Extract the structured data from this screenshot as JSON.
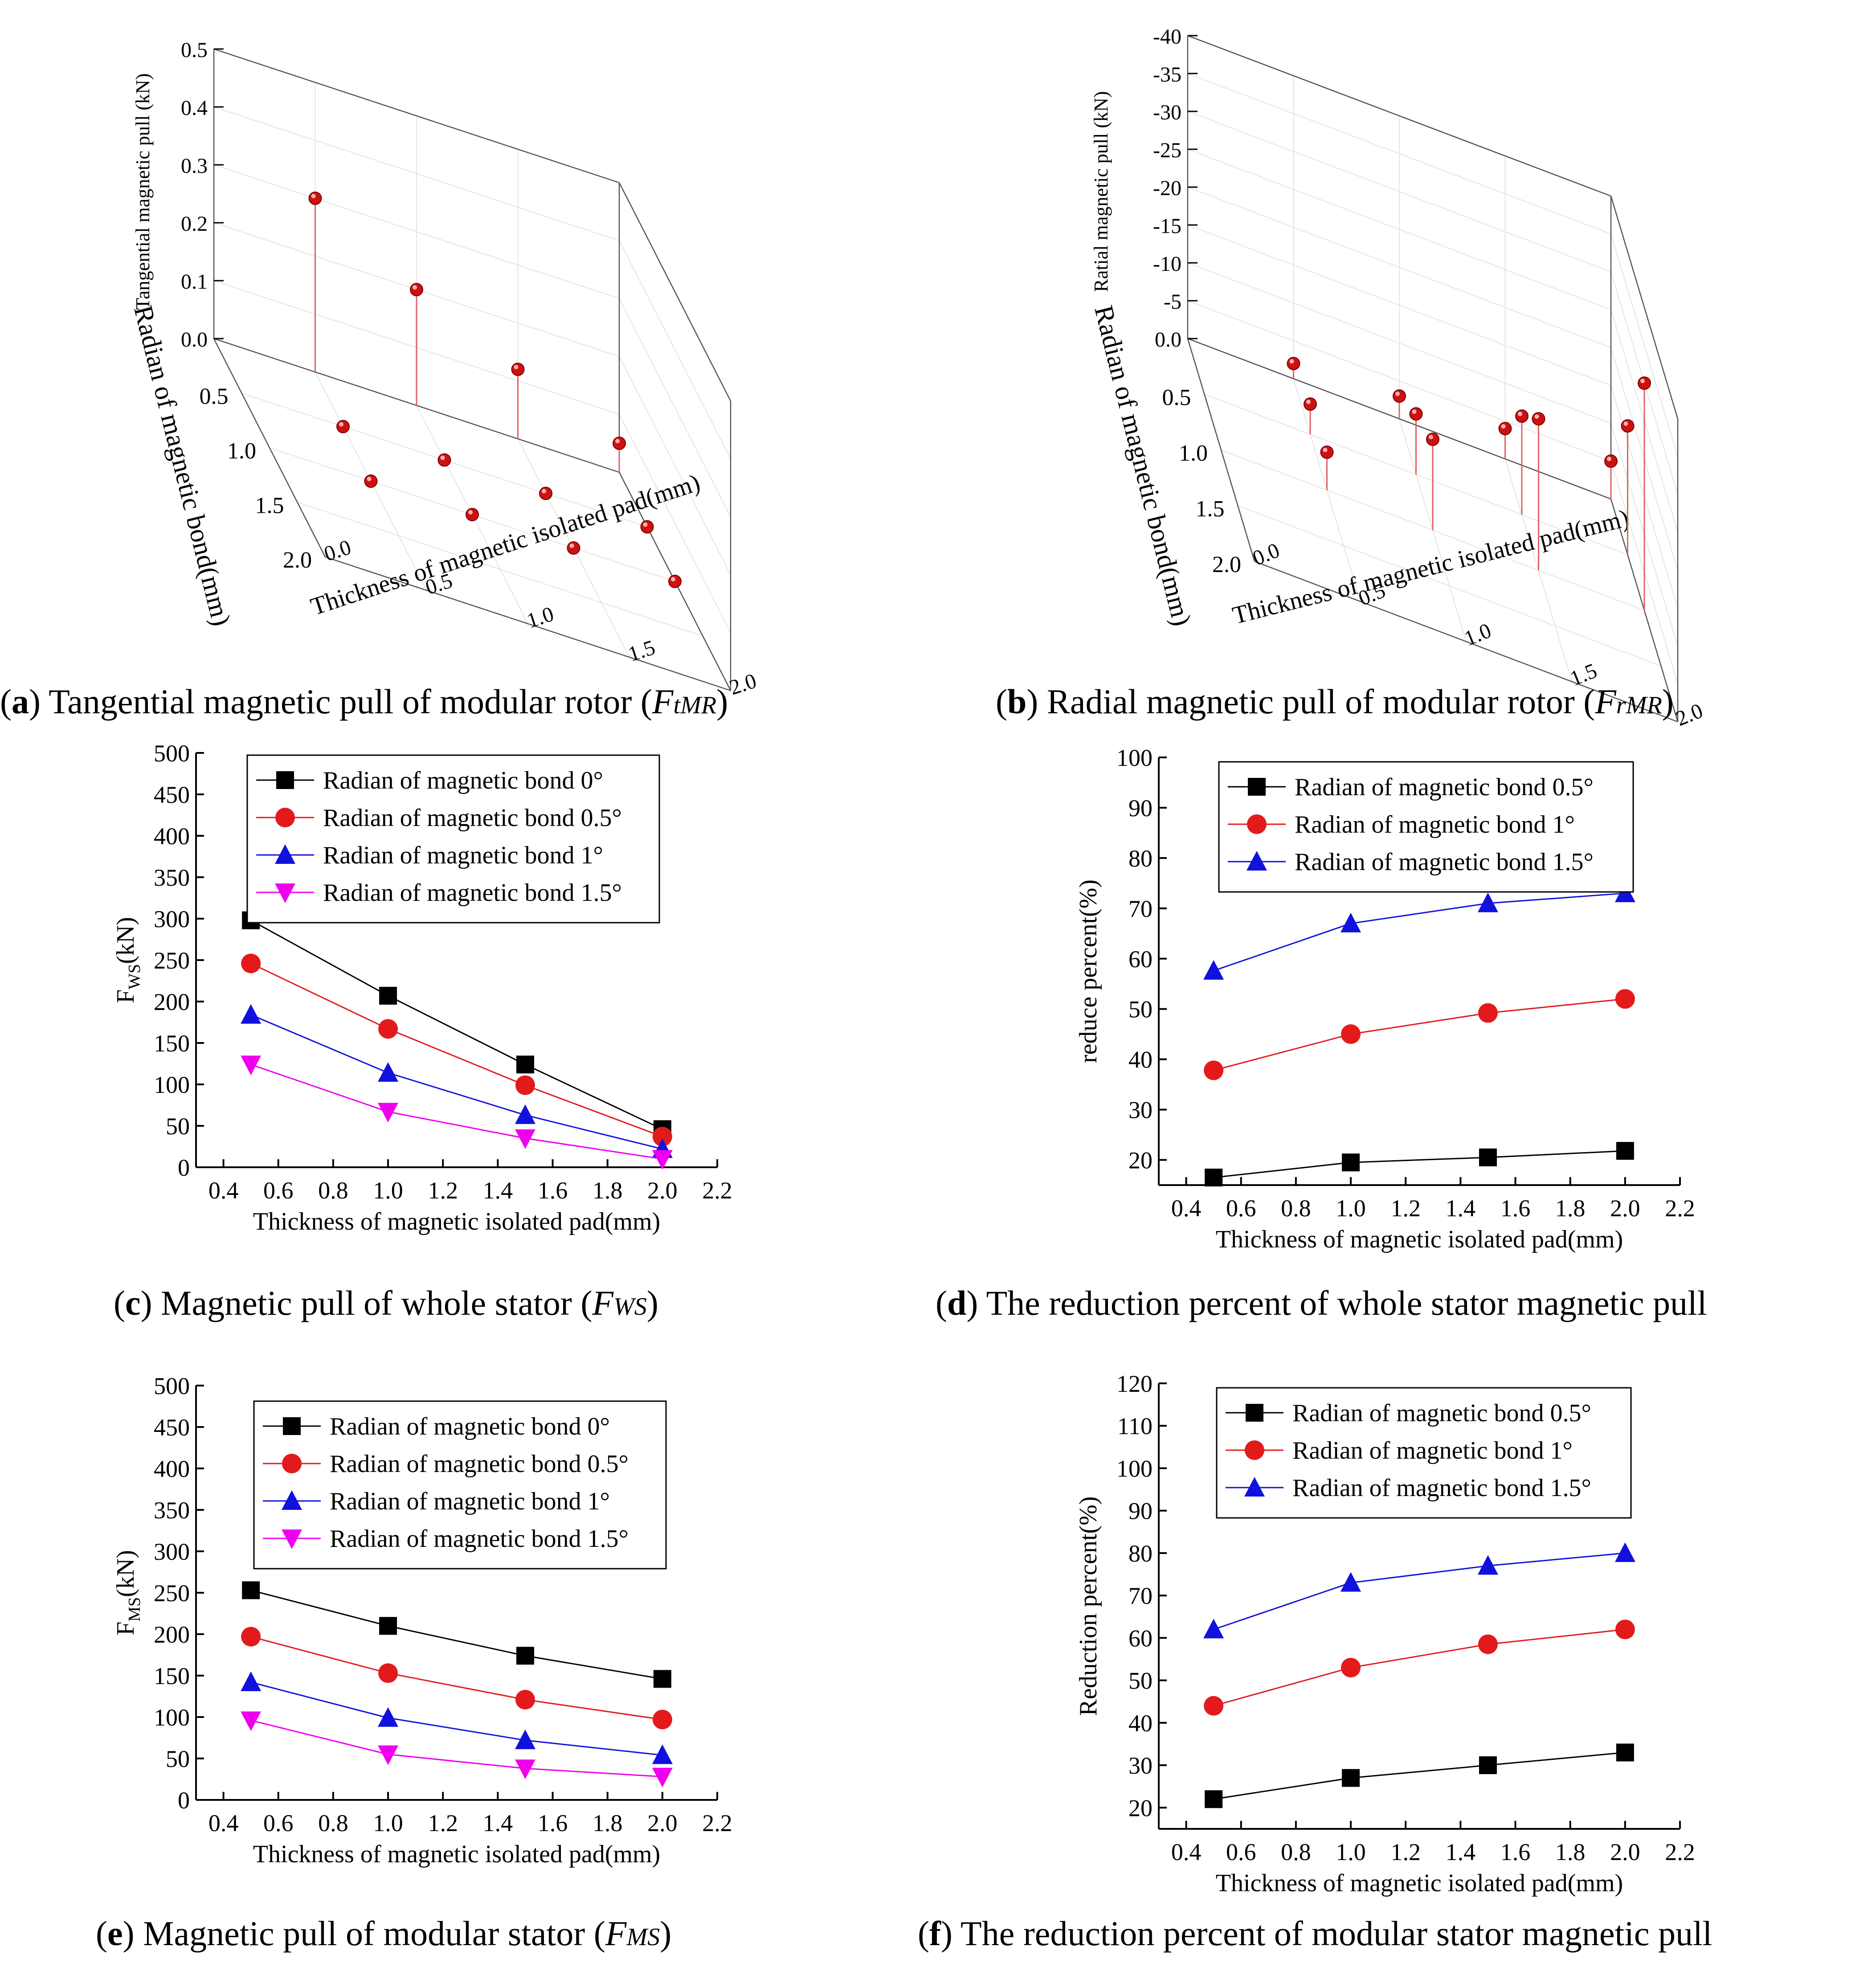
{
  "captions": {
    "a": {
      "letter": "a",
      "text": "Tangential magnetic pull of modular rotor",
      "var_main": "F",
      "var_sub": "tMR"
    },
    "b": {
      "letter": "b",
      "text": "Radial magnetic pull of modular rotor",
      "var_main": "F",
      "var_sub": "rMR"
    },
    "c": {
      "letter": "c",
      "text": "Magnetic pull of whole stator",
      "var_main": "F",
      "var_sub": "WS"
    },
    "d": {
      "letter": "d",
      "text": "The reduction percent of whole stator magnetic pull"
    },
    "e": {
      "letter": "e",
      "text": "Magnetic pull of modular stator",
      "var_main": "F",
      "var_sub": "MS"
    },
    "f": {
      "letter": "f",
      "text": "The reduction percent of modular stator magnetic pull"
    }
  },
  "chart_data": [
    {
      "id": "a",
      "type": "scatter",
      "projection": "3d",
      "zlabel": "Tangential magnetic pull (kN)",
      "xlabel": "Thickness of magnetic isolated pad(mm)",
      "ylabel": "Radian of magnetic bond(mm)",
      "x_ticks": [
        "0.0",
        "0.5",
        "1.0",
        "1.5",
        "2.0"
      ],
      "y_ticks": [
        "0.5",
        "1.0",
        "1.5",
        "2.0"
      ],
      "z_ticks": [
        "0.0",
        "0.1",
        "0.2",
        "0.3",
        "0.4",
        "0.5"
      ],
      "xlim": [
        0,
        2
      ],
      "ylim": [
        0,
        2
      ],
      "zlim": [
        0,
        0.5
      ],
      "points": [
        {
          "x": 0.5,
          "y": 0,
          "z": 0.3
        },
        {
          "x": 1.0,
          "y": 0,
          "z": 0.2
        },
        {
          "x": 1.5,
          "y": 0,
          "z": 0.12
        },
        {
          "x": 2.0,
          "y": 0,
          "z": 0.05
        },
        {
          "x": 0.5,
          "y": 0.5,
          "z": 0.0
        },
        {
          "x": 1.0,
          "y": 0.5,
          "z": 0.0
        },
        {
          "x": 1.5,
          "y": 0.5,
          "z": 0.0
        },
        {
          "x": 2.0,
          "y": 0.5,
          "z": 0.0
        },
        {
          "x": 0.5,
          "y": 1.0,
          "z": 0.0
        },
        {
          "x": 1.0,
          "y": 1.0,
          "z": 0.0
        },
        {
          "x": 1.5,
          "y": 1.0,
          "z": 0.0
        },
        {
          "x": 2.0,
          "y": 1.0,
          "z": 0.0
        }
      ]
    },
    {
      "id": "b",
      "type": "scatter",
      "projection": "3d",
      "zlabel": "Ratial magnetic pull (kN)",
      "xlabel": "Thickness of magnetic isolated pad(mm)",
      "ylabel": "Radian of magnetic bond(mm)",
      "x_ticks": [
        "0.0",
        "0.5",
        "1.0",
        "1.5",
        "2.0"
      ],
      "y_ticks": [
        "0.5",
        "1.0",
        "1.5",
        "2.0"
      ],
      "z_ticks": [
        "0.0",
        "-5",
        "-10",
        "-15",
        "-20",
        "-25",
        "-30",
        "-35",
        "-40"
      ],
      "xlim": [
        0,
        2
      ],
      "ylim": [
        0,
        2
      ],
      "zlim": [
        0,
        -40
      ],
      "points": [
        {
          "x": 0.5,
          "y": 0,
          "z": -2
        },
        {
          "x": 1.0,
          "y": 0,
          "z": -3
        },
        {
          "x": 1.5,
          "y": 0,
          "z": -4
        },
        {
          "x": 2.0,
          "y": 0,
          "z": -5
        },
        {
          "x": 0.5,
          "y": 0.5,
          "z": -4
        },
        {
          "x": 1.0,
          "y": 0.5,
          "z": -8
        },
        {
          "x": 1.5,
          "y": 0.5,
          "z": -13
        },
        {
          "x": 2.0,
          "y": 0.5,
          "z": -17
        },
        {
          "x": 0.5,
          "y": 1.0,
          "z": -5
        },
        {
          "x": 1.0,
          "y": 1.0,
          "z": -12
        },
        {
          "x": 1.5,
          "y": 1.0,
          "z": -20
        },
        {
          "x": 2.0,
          "y": 1.0,
          "z": -30
        }
      ]
    },
    {
      "id": "c",
      "type": "line",
      "xlabel": "Thickness of magnetic isolated pad(mm)",
      "ylabel_main": "F",
      "ylabel_sub": "WS",
      "ylabel_unit": "(kN)",
      "xlim": [
        0.3,
        2.2
      ],
      "ylim": [
        0,
        500
      ],
      "x_ticks": [
        0.4,
        0.6,
        0.8,
        1.0,
        1.2,
        1.4,
        1.6,
        1.8,
        2.0,
        2.2
      ],
      "y_ticks": [
        0,
        50,
        100,
        150,
        200,
        250,
        300,
        350,
        400,
        450,
        500
      ],
      "x": [
        0.5,
        1.0,
        1.5,
        2.0
      ],
      "legend_position": "top",
      "series": [
        {
          "name": "Radian of magnetic bond 0°",
          "color": "#000000",
          "marker": "square",
          "values": [
            298,
            207,
            124,
            46
          ]
        },
        {
          "name": "Radian of magnetic bond 0.5°",
          "color": "#e31a1c",
          "marker": "circle",
          "values": [
            246,
            167,
            99,
            37
          ]
        },
        {
          "name": "Radian of magnetic bond 1°",
          "color": "#1111dd",
          "marker": "triangle-up",
          "values": [
            184,
            114,
            63,
            22
          ]
        },
        {
          "name": "Radian of magnetic bond 1.5°",
          "color": "#ee00ee",
          "marker": "triangle-down",
          "values": [
            124,
            67,
            35,
            10
          ]
        }
      ]
    },
    {
      "id": "d",
      "type": "line",
      "xlabel": "Thickness of magnetic isolated pad(mm)",
      "ylabel": "reduce percent(%)",
      "xlim": [
        0.3,
        2.2
      ],
      "ylim": [
        15,
        100
      ],
      "x_ticks": [
        0.4,
        0.6,
        0.8,
        1.0,
        1.2,
        1.4,
        1.6,
        1.8,
        2.0,
        2.2
      ],
      "y_ticks": [
        20,
        30,
        40,
        50,
        60,
        70,
        80,
        90,
        100
      ],
      "x": [
        0.5,
        1.0,
        1.5,
        2.0
      ],
      "legend_position": "top",
      "series": [
        {
          "name": "Radian of magnetic bond 0.5°",
          "color": "#000000",
          "marker": "square",
          "values": [
            16.5,
            19.5,
            20.5,
            21.8
          ]
        },
        {
          "name": "Radian of magnetic bond 1°",
          "color": "#e31a1c",
          "marker": "circle",
          "values": [
            37.8,
            45,
            49.2,
            52
          ]
        },
        {
          "name": "Radian of magnetic bond 1.5°",
          "color": "#1111dd",
          "marker": "triangle-up",
          "values": [
            57.6,
            67,
            71,
            73
          ]
        }
      ]
    },
    {
      "id": "e",
      "type": "line",
      "xlabel": "Thickness of magnetic isolated pad(mm)",
      "ylabel_main": "F",
      "ylabel_sub": "MS",
      "ylabel_unit": "(kN)",
      "xlim": [
        0.3,
        2.2
      ],
      "ylim": [
        0,
        500
      ],
      "x_ticks": [
        0.4,
        0.6,
        0.8,
        1.0,
        1.2,
        1.4,
        1.6,
        1.8,
        2.0,
        2.2
      ],
      "y_ticks": [
        0,
        50,
        100,
        150,
        200,
        250,
        300,
        350,
        400,
        450,
        500
      ],
      "x": [
        0.5,
        1.0,
        1.5,
        2.0
      ],
      "legend_position": "top",
      "series": [
        {
          "name": "Radian of magnetic bond 0°",
          "color": "#000000",
          "marker": "square",
          "values": [
            253,
            210,
            174,
            146
          ]
        },
        {
          "name": "Radian of magnetic bond 0.5°",
          "color": "#e31a1c",
          "marker": "circle",
          "values": [
            197,
            153,
            121,
            97
          ]
        },
        {
          "name": "Radian of magnetic bond 1°",
          "color": "#1111dd",
          "marker": "triangle-up",
          "values": [
            142,
            99,
            72,
            54
          ]
        },
        {
          "name": "Radian of magnetic bond 1.5°",
          "color": "#ee00ee",
          "marker": "triangle-down",
          "values": [
            96,
            55,
            38,
            28
          ]
        }
      ]
    },
    {
      "id": "f",
      "type": "line",
      "xlabel": "Thickness of magnetic isolated pad(mm)",
      "ylabel": "Reduction percent(%)",
      "xlim": [
        0.3,
        2.2
      ],
      "ylim": [
        15,
        120
      ],
      "x_ticks": [
        0.4,
        0.6,
        0.8,
        1.0,
        1.2,
        1.4,
        1.6,
        1.8,
        2.0,
        2.2
      ],
      "y_ticks": [
        20,
        30,
        40,
        50,
        60,
        70,
        80,
        90,
        100,
        110,
        120
      ],
      "x": [
        0.5,
        1.0,
        1.5,
        2.0
      ],
      "legend_position": "top",
      "series": [
        {
          "name": "Radian of magnetic bond 0.5°",
          "color": "#000000",
          "marker": "square",
          "values": [
            22,
            27,
            30,
            33
          ]
        },
        {
          "name": "Radian of magnetic bond 1°",
          "color": "#e31a1c",
          "marker": "circle",
          "values": [
            44,
            53,
            58.5,
            62
          ]
        },
        {
          "name": "Radian of magnetic bond 1.5°",
          "color": "#1111dd",
          "marker": "triangle-up",
          "values": [
            62,
            73,
            77,
            80
          ]
        }
      ]
    }
  ]
}
